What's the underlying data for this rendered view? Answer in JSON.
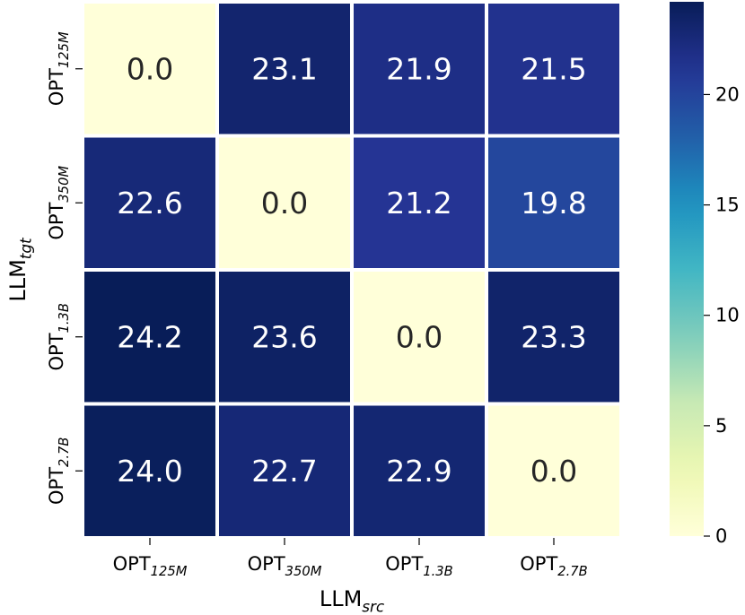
{
  "chart_data": {
    "type": "heatmap",
    "x_categories": [
      {
        "base": "OPT",
        "sub": "125M"
      },
      {
        "base": "OPT",
        "sub": "350M"
      },
      {
        "base": "OPT",
        "sub": "1.3B"
      },
      {
        "base": "OPT",
        "sub": "2.7B"
      }
    ],
    "y_categories": [
      {
        "base": "OPT",
        "sub": "125M"
      },
      {
        "base": "OPT",
        "sub": "350M"
      },
      {
        "base": "OPT",
        "sub": "1.3B"
      },
      {
        "base": "OPT",
        "sub": "2.7B"
      }
    ],
    "values": [
      [
        0.0,
        23.1,
        21.9,
        21.5
      ],
      [
        22.6,
        0.0,
        21.2,
        19.8
      ],
      [
        24.2,
        23.6,
        0.0,
        23.3
      ],
      [
        24.0,
        22.7,
        22.9,
        0.0
      ]
    ],
    "xlabel": {
      "base": "LLM",
      "sub": "src"
    },
    "ylabel": {
      "base": "LLM",
      "sub": "tgt"
    },
    "colormap": "YlGnBu",
    "vmin": 0.0,
    "vmax": 24.2,
    "colorbar_ticks": [
      0,
      5,
      10,
      15,
      20
    ],
    "annotation_format": "0.1f",
    "annotation_colors": {
      "light": "#ffffff",
      "dark": "#262626"
    }
  }
}
